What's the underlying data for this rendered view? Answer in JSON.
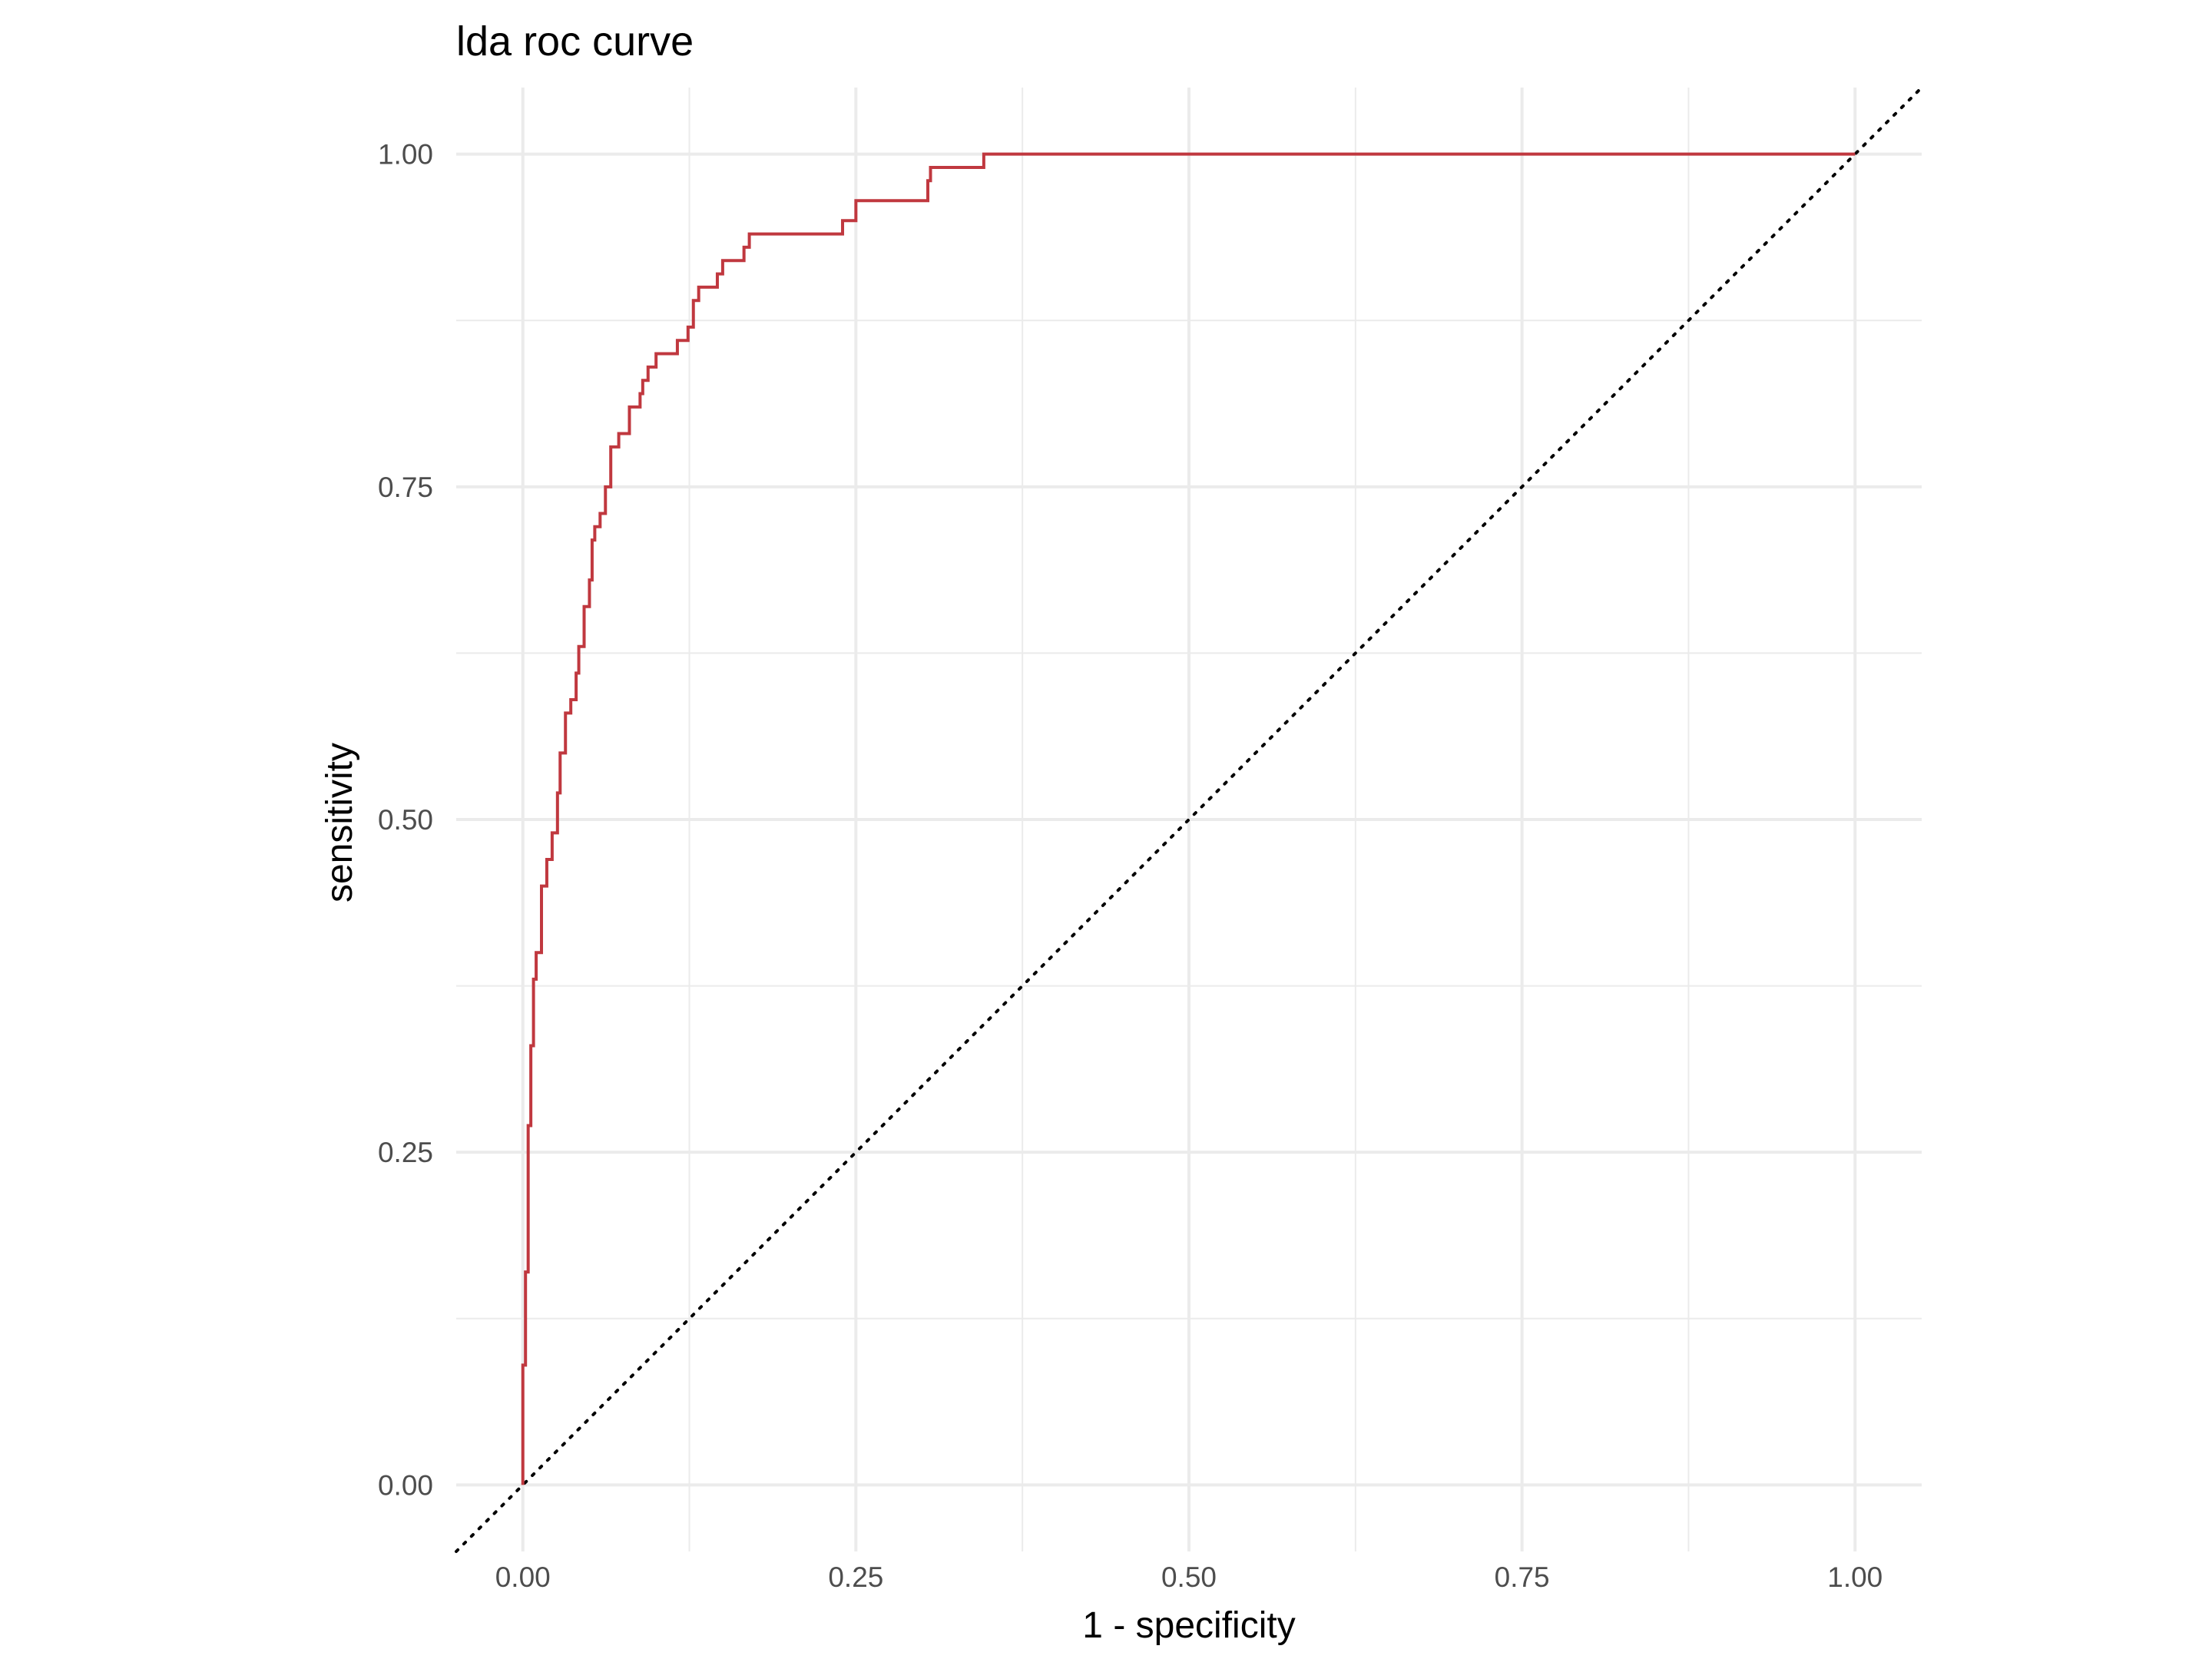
{
  "chart_data": {
    "type": "line",
    "title": "lda roc curve",
    "xlabel": "1 - specificity",
    "ylabel": "sensitivity",
    "xlim": [
      -0.05,
      1.05
    ],
    "ylim": [
      -0.05,
      1.05
    ],
    "x_ticks": [
      "0.00",
      "0.25",
      "0.50",
      "0.75",
      "1.00"
    ],
    "y_ticks": [
      "0.00",
      "0.25",
      "0.50",
      "0.75",
      "1.00"
    ],
    "grid": true,
    "reference_line": {
      "style": "dotted",
      "from": [
        -0.05,
        -0.05
      ],
      "to": [
        1.05,
        1.05
      ],
      "color": "#000000"
    },
    "series": [
      {
        "color": "#c0383f",
        "x": [
          0,
          0,
          0.002,
          0.002,
          0.004,
          0.004,
          0.006,
          0.006,
          0.008,
          0.008,
          0.01,
          0.01,
          0.014,
          0.014,
          0.018,
          0.018,
          0.022,
          0.022,
          0.026,
          0.026,
          0.028,
          0.028,
          0.032,
          0.032,
          0.036,
          0.036,
          0.04,
          0.04,
          0.042,
          0.042,
          0.046,
          0.046,
          0.05,
          0.05,
          0.052,
          0.052,
          0.054,
          0.054,
          0.058,
          0.058,
          0.062,
          0.062,
          0.066,
          0.066,
          0.072,
          0.072,
          0.08,
          0.08,
          0.088,
          0.088,
          0.09,
          0.09,
          0.094,
          0.094,
          0.1,
          0.1,
          0.116,
          0.116,
          0.124,
          0.124,
          0.128,
          0.128,
          0.132,
          0.132,
          0.146,
          0.146,
          0.15,
          0.15,
          0.166,
          0.166,
          0.17,
          0.17,
          0.24,
          0.24,
          0.25,
          0.25,
          0.304,
          0.304,
          0.306,
          0.306,
          0.346,
          0.346,
          1.0
        ],
        "y": [
          0,
          0.09,
          0.09,
          0.16,
          0.16,
          0.27,
          0.27,
          0.33,
          0.33,
          0.38,
          0.38,
          0.4,
          0.4,
          0.45,
          0.45,
          0.47,
          0.47,
          0.49,
          0.49,
          0.52,
          0.52,
          0.55,
          0.55,
          0.58,
          0.58,
          0.59,
          0.59,
          0.61,
          0.61,
          0.63,
          0.63,
          0.66,
          0.66,
          0.68,
          0.68,
          0.71,
          0.71,
          0.72,
          0.72,
          0.73,
          0.73,
          0.75,
          0.75,
          0.78,
          0.78,
          0.79,
          0.79,
          0.81,
          0.81,
          0.82,
          0.82,
          0.83,
          0.83,
          0.84,
          0.84,
          0.85,
          0.85,
          0.86,
          0.86,
          0.87,
          0.87,
          0.89,
          0.89,
          0.9,
          0.9,
          0.91,
          0.91,
          0.92,
          0.92,
          0.93,
          0.93,
          0.94,
          0.94,
          0.95,
          0.95,
          0.965,
          0.965,
          0.98,
          0.98,
          0.99,
          0.99,
          1.0,
          1.0
        ]
      }
    ]
  }
}
